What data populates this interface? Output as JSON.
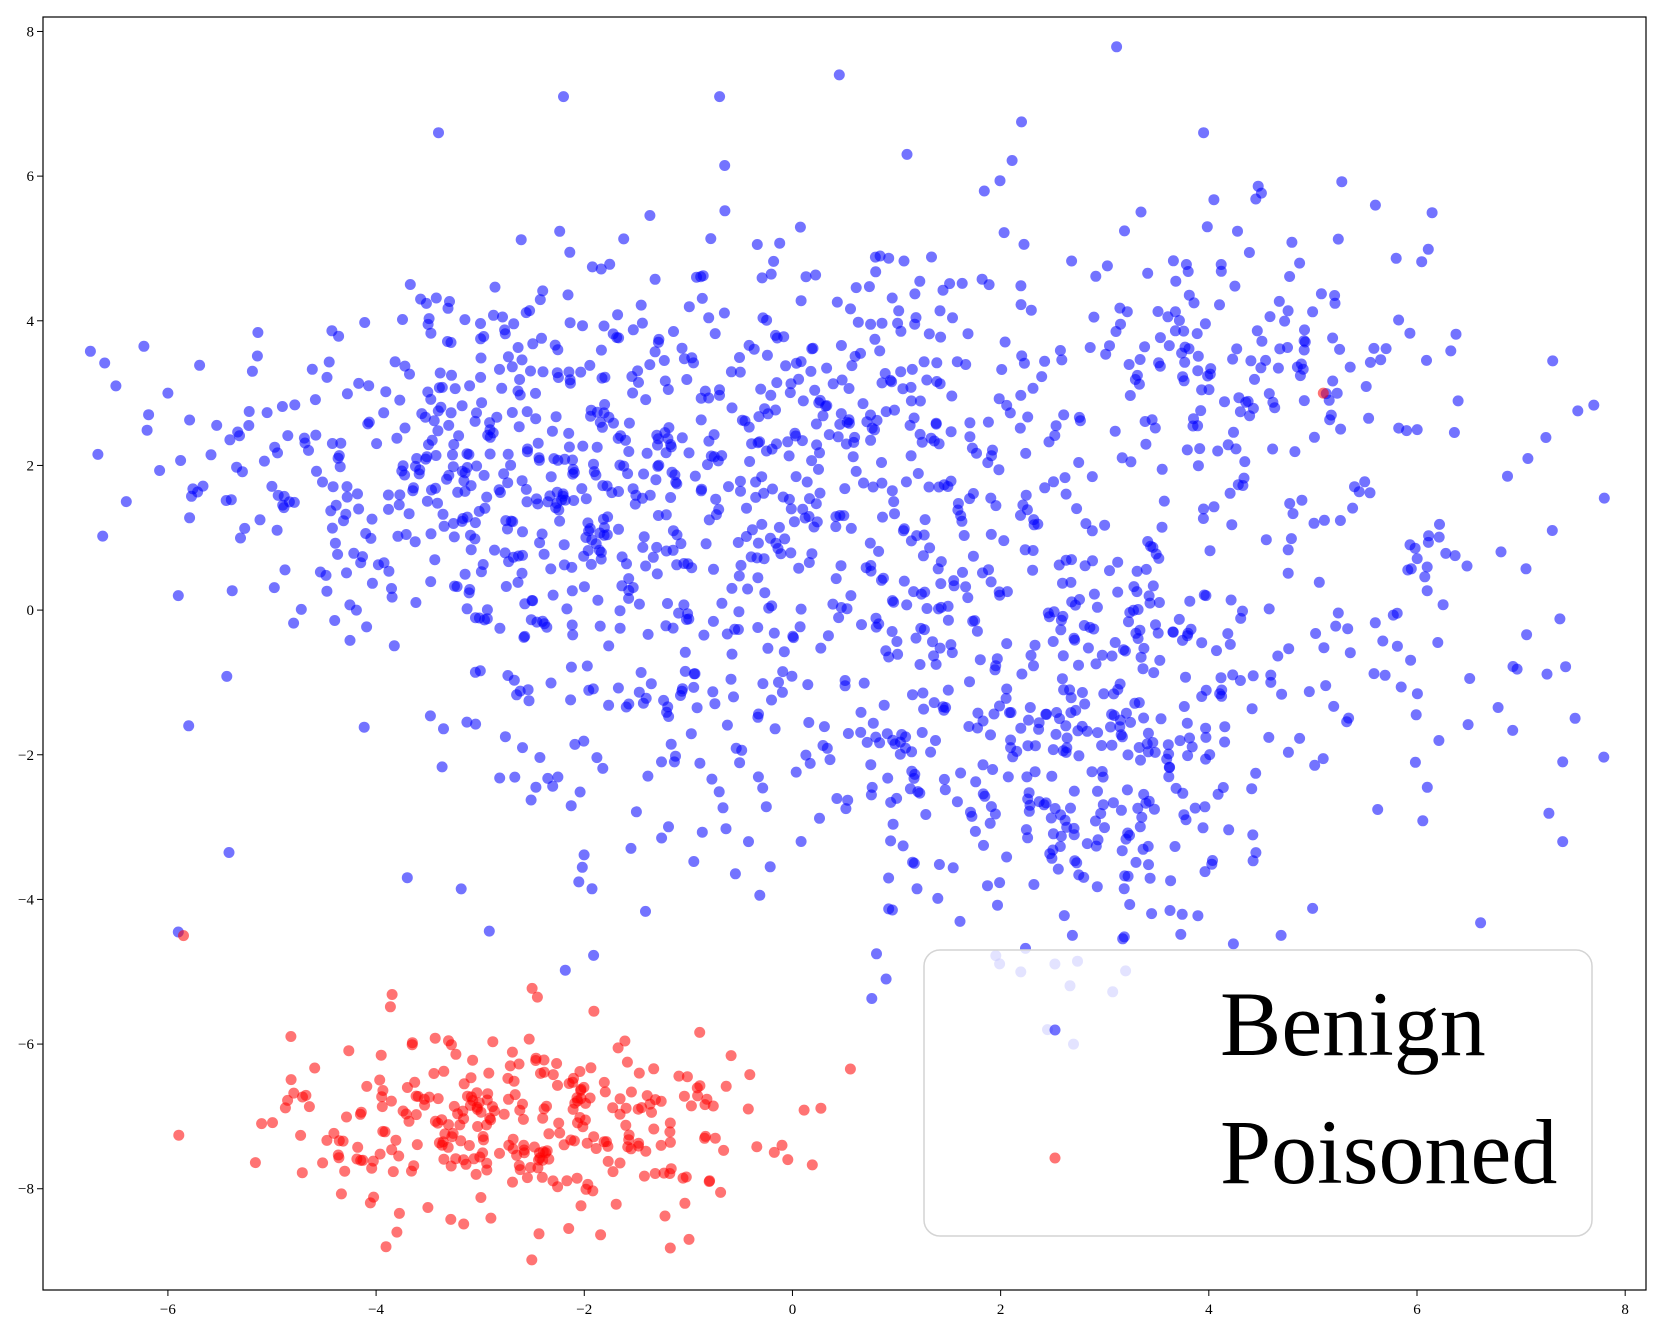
{
  "chart_data": {
    "type": "scatter",
    "title": "",
    "xlabel": "",
    "ylabel": "",
    "xlim": [
      -7.2,
      8.2
    ],
    "ylim": [
      -9.4,
      8.2
    ],
    "xticks": [
      -6,
      -4,
      -2,
      0,
      2,
      4,
      6,
      8
    ],
    "yticks": [
      -8,
      -6,
      -4,
      -2,
      0,
      2,
      4,
      6,
      8
    ],
    "grid": false,
    "legend": {
      "placement": "lower-right"
    },
    "series": [
      {
        "name": "Benign",
        "color": "#0000ff",
        "opacity": 0.55,
        "points_note_count": 1700,
        "clusters": [
          {
            "cx": -3.4,
            "cy": 2.1,
            "sx": 1.3,
            "sy": 1.3,
            "n": 300
          },
          {
            "cx": -1.2,
            "cy": 1.4,
            "sx": 1.4,
            "sy": 1.6,
            "n": 340
          },
          {
            "cx": 0.8,
            "cy": 2.3,
            "sx": 1.4,
            "sy": 1.6,
            "n": 300
          },
          {
            "cx": 2.8,
            "cy": -1.8,
            "sx": 1.0,
            "sy": 1.5,
            "n": 320
          },
          {
            "cx": 4.3,
            "cy": 3.6,
            "sx": 0.9,
            "sy": 0.9,
            "n": 140
          },
          {
            "cx": 5.3,
            "cy": 0.2,
            "sx": 1.4,
            "sy": 2.0,
            "n": 150
          },
          {
            "cx": -0.2,
            "cy": -1.8,
            "sx": 1.7,
            "sy": 1.2,
            "n": 150
          }
        ],
        "sample_points": [
          [
            -6.5,
            3.1
          ],
          [
            -6.4,
            1.5
          ],
          [
            -6.0,
            3.0
          ],
          [
            -5.9,
            0.2
          ],
          [
            -5.8,
            -1.6
          ],
          [
            -5.9,
            -4.45
          ],
          [
            -3.7,
            -3.7
          ],
          [
            -2.2,
            7.1
          ],
          [
            0.45,
            7.4
          ],
          [
            -0.7,
            7.1
          ],
          [
            3.95,
            6.6
          ],
          [
            5.6,
            5.6
          ],
          [
            7.3,
            1.1
          ],
          [
            7.4,
            -3.2
          ],
          [
            0.9,
            -5.1
          ],
          [
            2.7,
            -6.0
          ],
          [
            2.45,
            -5.8
          ],
          [
            -3.4,
            6.6
          ],
          [
            1.1,
            6.3
          ],
          [
            2.2,
            6.75
          ]
        ]
      },
      {
        "name": "Poisoned",
        "color": "#ff0000",
        "opacity": 0.55,
        "points_note_count": 300,
        "clusters": [
          {
            "cx": -2.6,
            "cy": -7.1,
            "sx": 1.1,
            "sy": 0.65,
            "n": 300
          }
        ],
        "sample_points": [
          [
            -5.85,
            -4.5
          ],
          [
            5.1,
            3.0
          ],
          [
            -5.1,
            -7.1
          ],
          [
            -0.1,
            -7.4
          ],
          [
            -2.45,
            -5.35
          ],
          [
            -3.8,
            -8.6
          ],
          [
            -2.15,
            -8.55
          ],
          [
            -0.8,
            -7.9
          ]
        ]
      }
    ]
  }
}
